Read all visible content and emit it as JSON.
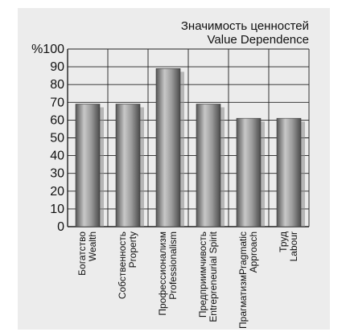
{
  "chart_data": {
    "type": "bar",
    "title_lines": [
      "Значимость ценностей",
      "Value Dependence"
    ],
    "y_unit_label": "%",
    "ylim": [
      0,
      100
    ],
    "y_ticks": [
      0,
      10,
      20,
      30,
      40,
      50,
      60,
      70,
      80,
      90,
      100
    ],
    "grid": true,
    "categories": [
      {
        "line1": "Богатство",
        "line2": "Wealth"
      },
      {
        "line1": "Собственность",
        "line2": "Property"
      },
      {
        "line1": "Профессионализм",
        "line2": "Professionalism"
      },
      {
        "line1": "Предприимчивость",
        "line2": "Entrepreneurial Spirit"
      },
      {
        "line1": "ПрагматизмPragmatic",
        "line2": "Approach"
      },
      {
        "line1": "Труд",
        "line2": "Labour"
      }
    ],
    "values": [
      69,
      69,
      89,
      69,
      61,
      61
    ],
    "colors": {
      "panel": "#ececec",
      "grid": "#222222",
      "bar_dark": "#5e5e5e",
      "bar_light": "#bdbdbd",
      "shadow": "#8a8a8a"
    }
  }
}
